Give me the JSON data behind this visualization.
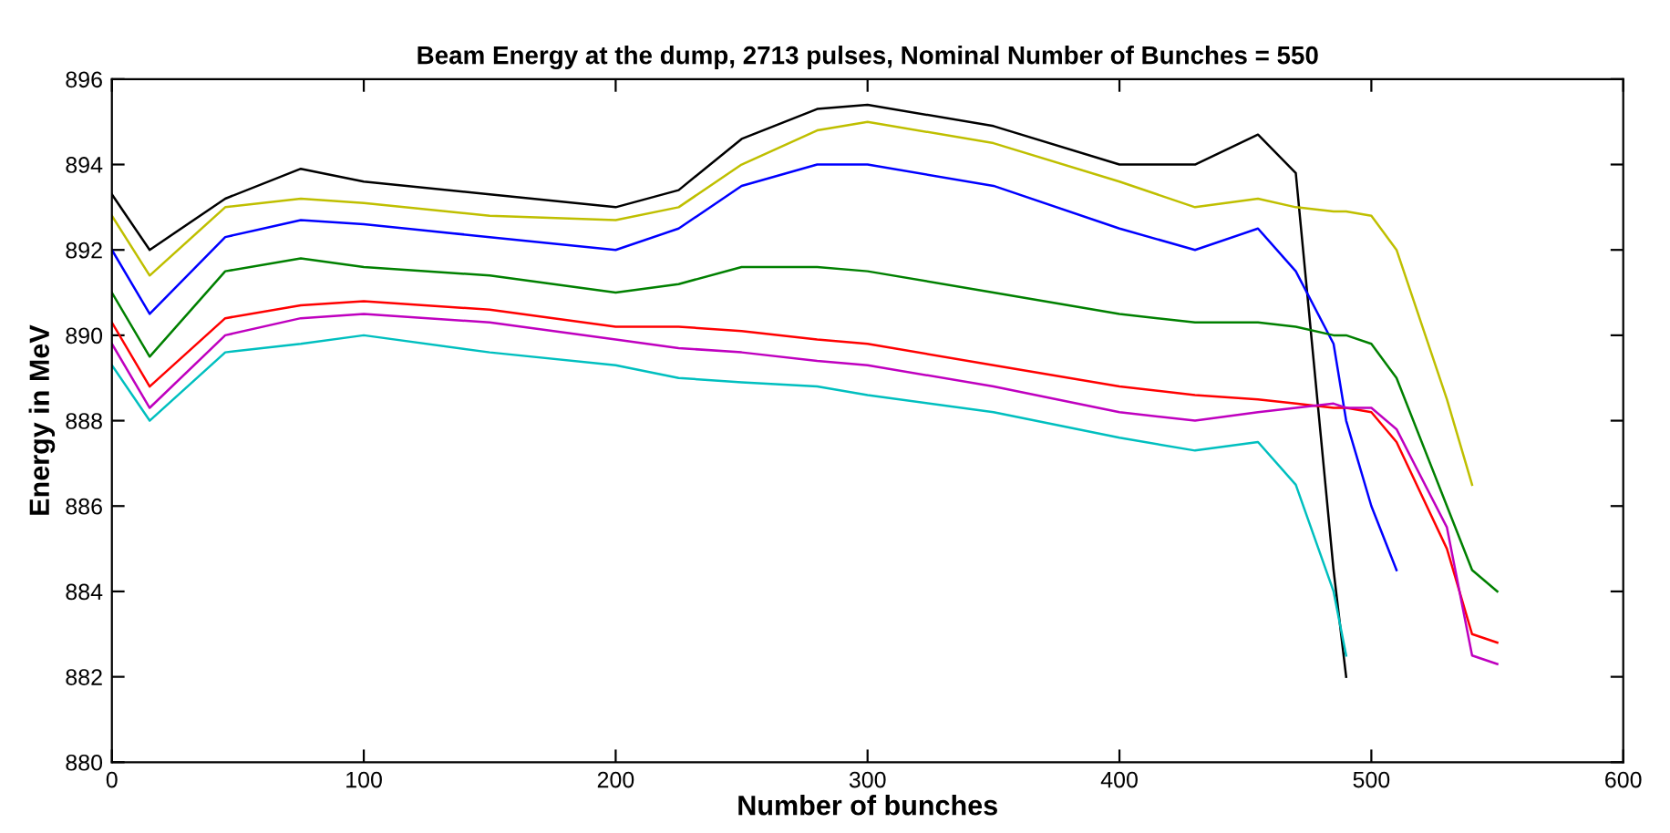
{
  "chart_data": {
    "type": "line",
    "title": "Beam Energy at the dump, 2713 pulses, Nominal Number of Bunches = 550",
    "xlabel": "Number of bunches",
    "ylabel": "Energy in MeV",
    "x": [
      0,
      15,
      45,
      75,
      100,
      150,
      200,
      225,
      250,
      280,
      300,
      350,
      400,
      430,
      455,
      470,
      485,
      490,
      500,
      510,
      530,
      540,
      550
    ],
    "series": [
      {
        "color": "#000000",
        "values": [
          893.3,
          892.0,
          893.2,
          893.9,
          893.6,
          893.3,
          893.0,
          893.4,
          894.6,
          895.3,
          895.4,
          894.9,
          894.0,
          894.0,
          894.7,
          893.8,
          884.5,
          882.0,
          null,
          null,
          null,
          null,
          null
        ]
      },
      {
        "color": "#bfbf00",
        "values": [
          892.8,
          891.4,
          893.0,
          893.2,
          893.1,
          892.8,
          892.7,
          893.0,
          894.0,
          894.8,
          895.0,
          894.5,
          893.6,
          893.0,
          893.2,
          893.0,
          892.9,
          892.9,
          892.8,
          892.0,
          888.5,
          886.5,
          null
        ]
      },
      {
        "color": "#0000ff",
        "values": [
          892.0,
          890.5,
          892.3,
          892.7,
          892.6,
          892.3,
          892.0,
          892.5,
          893.5,
          894.0,
          894.0,
          893.5,
          892.5,
          892.0,
          892.5,
          891.5,
          889.8,
          888.0,
          886.0,
          884.5,
          null,
          null,
          null
        ]
      },
      {
        "color": "#008000",
        "values": [
          891.0,
          889.5,
          891.5,
          891.8,
          891.6,
          891.4,
          891.0,
          891.2,
          891.6,
          891.6,
          891.5,
          891.0,
          890.5,
          890.3,
          890.3,
          890.2,
          890.0,
          890.0,
          889.8,
          889.0,
          886.0,
          884.5,
          884.0
        ]
      },
      {
        "color": "#ff0000",
        "values": [
          890.3,
          888.8,
          890.4,
          890.7,
          890.8,
          890.6,
          890.2,
          890.2,
          890.1,
          889.9,
          889.8,
          889.3,
          888.8,
          888.6,
          888.5,
          888.4,
          888.3,
          888.3,
          888.2,
          887.5,
          885.0,
          883.0,
          882.8
        ]
      },
      {
        "color": "#bf00bf",
        "values": [
          889.8,
          888.3,
          890.0,
          890.4,
          890.5,
          890.3,
          889.9,
          889.7,
          889.6,
          889.4,
          889.3,
          888.8,
          888.2,
          888.0,
          888.2,
          888.3,
          888.4,
          888.3,
          888.3,
          887.8,
          885.5,
          882.5,
          882.3
        ]
      },
      {
        "color": "#00bfbf",
        "values": [
          889.3,
          888.0,
          889.6,
          889.8,
          890.0,
          889.6,
          889.3,
          889.0,
          888.9,
          888.8,
          888.6,
          888.2,
          887.6,
          887.3,
          887.5,
          886.5,
          884.0,
          882.5,
          null,
          null,
          null,
          null,
          null
        ]
      }
    ],
    "xlim": [
      0,
      600
    ],
    "xticks": [
      0,
      100,
      200,
      300,
      400,
      500,
      600
    ],
    "ylim": [
      880,
      896
    ],
    "yticks": [
      880,
      882,
      884,
      886,
      888,
      890,
      892,
      894,
      896
    ]
  }
}
